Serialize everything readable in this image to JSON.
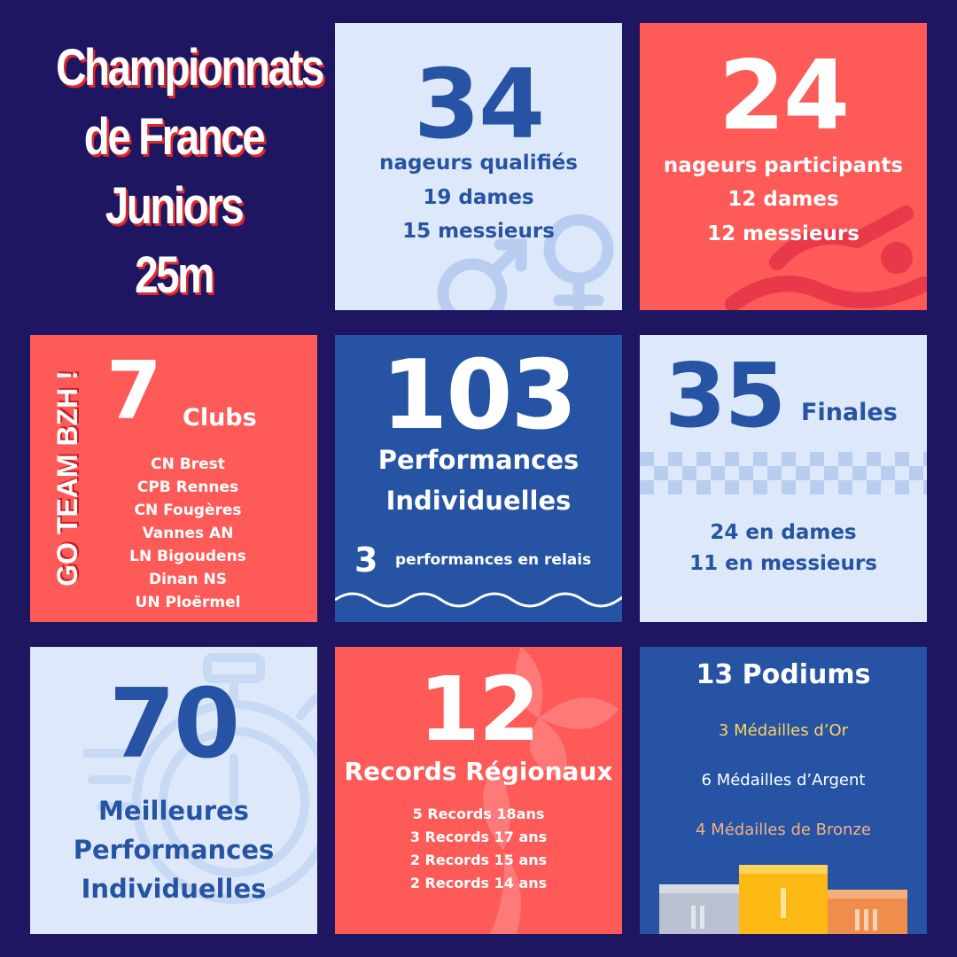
{
  "title": {
    "lines": [
      "Championnats",
      "de France",
      "Juniors",
      "25m"
    ]
  },
  "qualified": {
    "number": "34",
    "label": "nageurs qualifiés",
    "women": "19 dames",
    "men": "15 messieurs",
    "icon": "gender-symbols-icon"
  },
  "participants": {
    "number": "24",
    "label": "nageurs participants",
    "women": "12 dames",
    "men": "12 messieurs",
    "icon": "swimmer-icon"
  },
  "clubs": {
    "slogan": "GO TEAM BZH !",
    "number": "7",
    "label": "Clubs",
    "list": [
      "CN Brest",
      "CPB Rennes",
      "CN Fougères",
      "Vannes AN",
      "LN Bigoudens",
      "Dinan NS",
      "UN Ploërmel"
    ]
  },
  "performances": {
    "number": "103",
    "line1": "Performances",
    "line2": "Individuelles",
    "relay_number": "3",
    "relay_label": "performances en relais",
    "icon": "wave-icon"
  },
  "finals": {
    "number": "35",
    "label": "Finales",
    "women": "24 en dames",
    "men": "11 en messieurs",
    "icon": "checkered-flag-icon"
  },
  "best": {
    "number": "70",
    "line1": "Meilleures",
    "line2": "Performances",
    "line3": "Individuelles",
    "icon": "stopwatch-icon"
  },
  "records": {
    "number": "12",
    "label": "Records Régionaux",
    "list": [
      "5 Records 18ans",
      "3 Records 17 ans",
      "2 Records 15 ans",
      "2 Records 14 ans"
    ],
    "icon": "ermine-icon"
  },
  "podiums": {
    "title": "13 Podiums",
    "gold": "3 Médailles d’Or",
    "silver": "6 Médailles d’Argent",
    "bronze": "4 Médailles de Bronze",
    "icon": "podium-icon",
    "colors": {
      "gold": "#ffd75e",
      "silver": "#ffffff",
      "bronze": "#f4b184"
    }
  }
}
